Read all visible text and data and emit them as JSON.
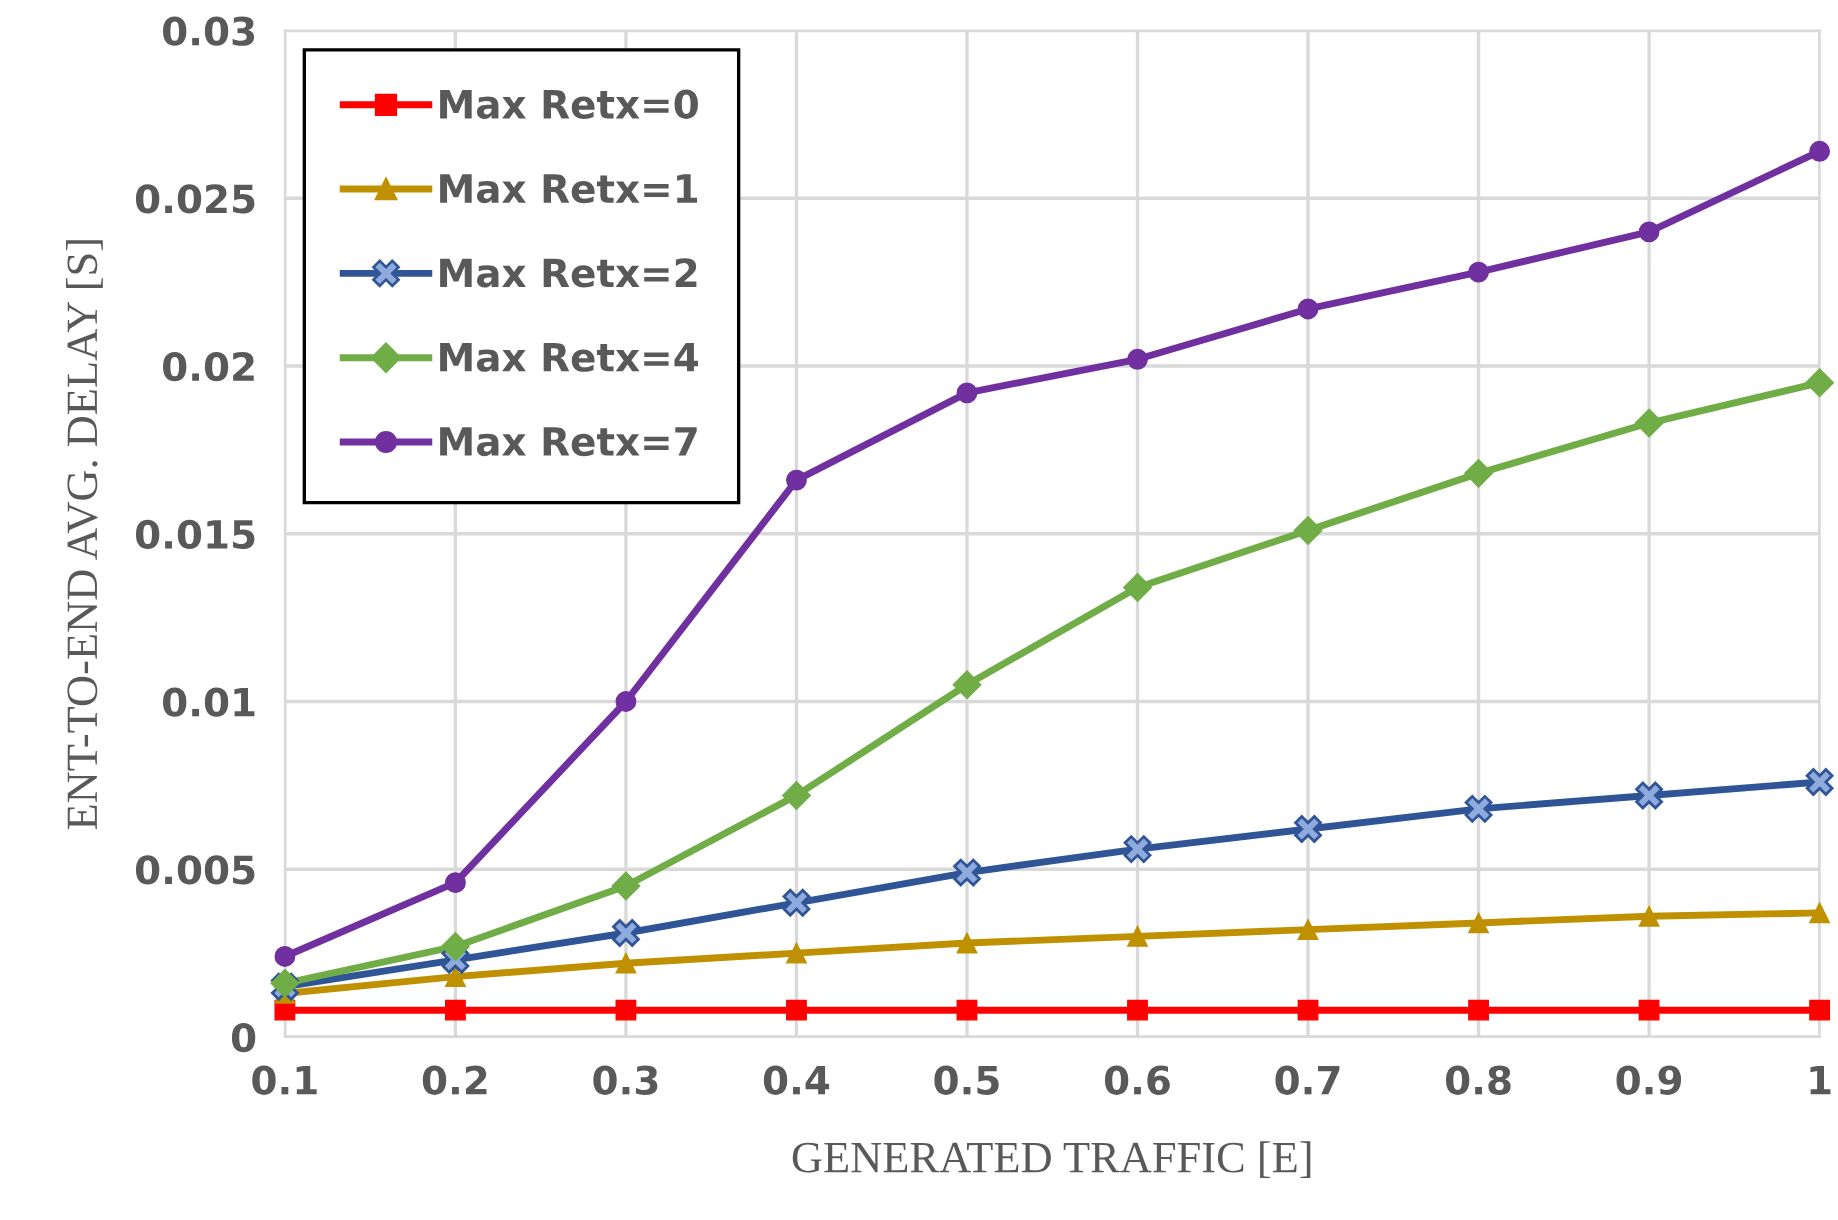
{
  "chart_data": {
    "type": "line",
    "xlabel": "GENERATED TRAFFIC [E]",
    "ylabel": "ENT-TO-END AVG. DELAY [S]",
    "x": [
      0.1,
      0.2,
      0.3,
      0.4,
      0.5,
      0.6,
      0.7,
      0.8,
      0.9,
      1
    ],
    "series": [
      {
        "name": "Max Retx=0",
        "color": "#ff0000",
        "marker": "square",
        "values": [
          0.0008,
          0.0008,
          0.0008,
          0.0008,
          0.0008,
          0.0008,
          0.0008,
          0.0008,
          0.0008,
          0.0008
        ]
      },
      {
        "name": "Max Retx=1",
        "color": "#bf9000",
        "marker": "triangle",
        "values": [
          0.0013,
          0.0018,
          0.0022,
          0.0025,
          0.0028,
          0.003,
          0.0032,
          0.0034,
          0.0036,
          0.0037
        ]
      },
      {
        "name": "Max Retx=2",
        "color": "#2f5597",
        "marker": "cross",
        "values": [
          0.0015,
          0.0023,
          0.0031,
          0.004,
          0.0049,
          0.0056,
          0.0062,
          0.0068,
          0.0072,
          0.0076
        ]
      },
      {
        "name": "Max Retx=4",
        "color": "#70ad47",
        "marker": "diamond",
        "values": [
          0.0016,
          0.0027,
          0.0045,
          0.0072,
          0.0105,
          0.0134,
          0.0151,
          0.0168,
          0.0183,
          0.0195
        ]
      },
      {
        "name": "Max Retx=7",
        "color": "#7030a0",
        "marker": "circle",
        "values": [
          0.0024,
          0.0046,
          0.01,
          0.0166,
          0.0192,
          0.0202,
          0.0217,
          0.0228,
          0.024,
          0.0264
        ]
      }
    ],
    "xlim": [
      0.1,
      1
    ],
    "xticks": [
      0.1,
      0.2,
      0.3,
      0.4,
      0.5,
      0.6,
      0.7,
      0.8,
      0.9,
      1
    ],
    "ylim": [
      0,
      0.03
    ],
    "yticks": [
      0,
      0.005,
      0.01,
      0.015,
      0.02,
      0.025,
      0.03
    ],
    "grid": true,
    "legend": "top left",
    "line_style": "solid"
  }
}
